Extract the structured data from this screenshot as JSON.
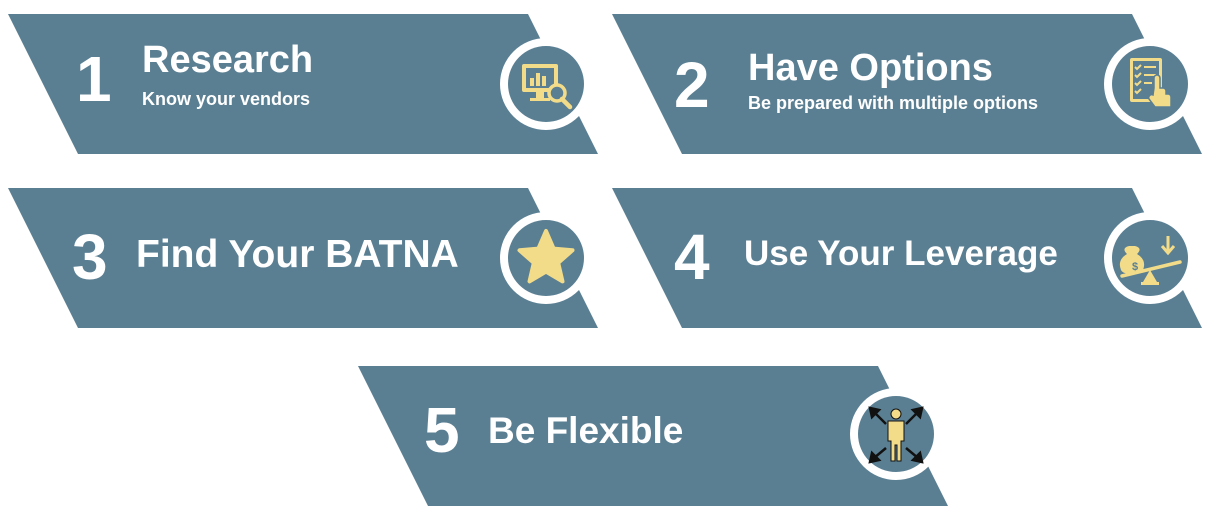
{
  "colors": {
    "band": "#5a7f93",
    "icon_fill": "#f2dc8a",
    "circle_ring": "#ffffff",
    "text": "#ffffff"
  },
  "steps": [
    {
      "number": "1",
      "title": "Research",
      "subtitle": "Know your vendors",
      "icon": "monitor-search-icon"
    },
    {
      "number": "2",
      "title": "Have Options",
      "subtitle": "Be prepared with multiple options",
      "icon": "checklist-touch-icon"
    },
    {
      "number": "3",
      "title": "Find Your BATNA",
      "subtitle": "",
      "icon": "star-icon"
    },
    {
      "number": "4",
      "title": "Use Your Leverage",
      "subtitle": "",
      "icon": "money-seesaw-icon"
    },
    {
      "number": "5",
      "title": "Be Flexible",
      "subtitle": "",
      "icon": "person-arrows-icon"
    }
  ]
}
